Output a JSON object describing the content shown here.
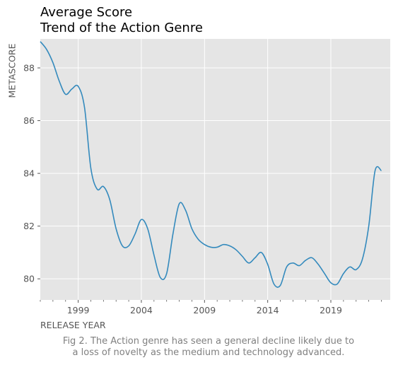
{
  "chart_data": {
    "type": "line",
    "title_line1": "Average Score",
    "title_line2": "Trend of the Action Genre",
    "xlabel": "RELEASE YEAR",
    "ylabel": "METASCORE",
    "xlim": [
      1996,
      2023.7
    ],
    "ylim": [
      79.2,
      89.1
    ],
    "x_ticks": [
      1999,
      2004,
      2009,
      2014,
      2019
    ],
    "y_ticks": [
      80,
      82,
      84,
      86,
      88
    ],
    "series": [
      {
        "name": "Action",
        "color": "#348abd",
        "x": [
          1996,
          1996.5,
          1997,
          1997.5,
          1998,
          1998.5,
          1999,
          1999.5,
          2000,
          2000.5,
          2001,
          2001.5,
          2002,
          2002.5,
          2003,
          2003.5,
          2004,
          2004.5,
          2005,
          2005.5,
          2006,
          2006.5,
          2007,
          2007.5,
          2008,
          2008.5,
          2009,
          2009.5,
          2010,
          2010.5,
          2011,
          2011.5,
          2012,
          2012.5,
          2013,
          2013.5,
          2014,
          2014.5,
          2015,
          2015.5,
          2016,
          2016.5,
          2017,
          2017.5,
          2018,
          2018.5,
          2019,
          2019.5,
          2020,
          2020.5,
          2021,
          2021.5,
          2022,
          2022.5,
          2023
        ],
        "y": [
          89.0,
          88.7,
          88.2,
          87.5,
          87.0,
          87.2,
          87.3,
          86.5,
          84.2,
          83.4,
          83.5,
          83.0,
          81.9,
          81.25,
          81.25,
          81.7,
          82.25,
          81.9,
          80.9,
          80.05,
          80.2,
          81.7,
          82.85,
          82.6,
          81.9,
          81.5,
          81.3,
          81.2,
          81.2,
          81.3,
          81.25,
          81.1,
          80.85,
          80.6,
          80.8,
          81.0,
          80.55,
          79.8,
          79.75,
          80.45,
          80.6,
          80.5,
          80.7,
          80.8,
          80.55,
          80.2,
          79.85,
          79.8,
          80.2,
          80.45,
          80.35,
          80.75,
          82.0,
          84.1,
          84.1
        ]
      }
    ]
  },
  "caption": {
    "line1": "Fig 2. The Action genre has seen a general decline likely due to",
    "line2": "a loss of novelty as the medium and technology advanced."
  }
}
